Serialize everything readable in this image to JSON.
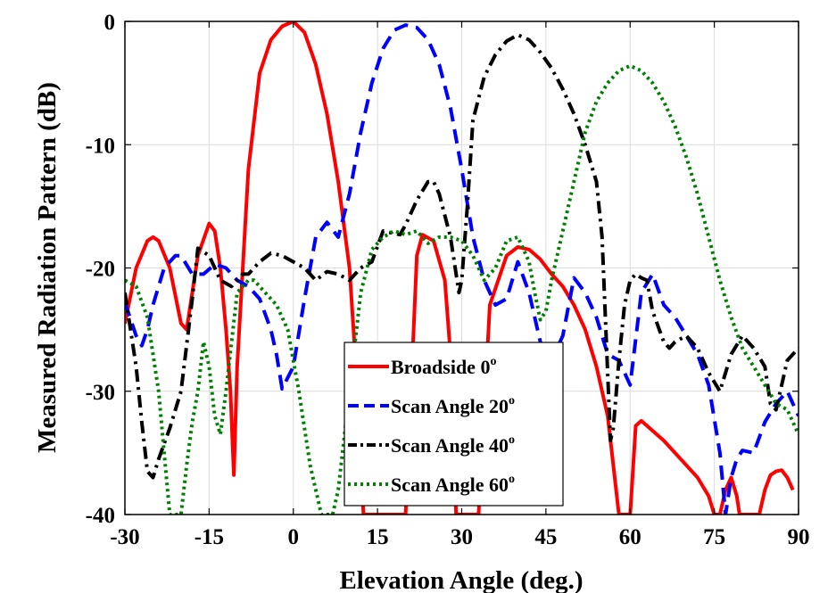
{
  "chart_data": {
    "type": "line",
    "xlabel": "Elevation Angle (deg.)",
    "ylabel": "Measured Radiation Pattern (dB)",
    "xlim": [
      -30,
      90
    ],
    "ylim": [
      -40,
      0
    ],
    "xticks": [
      -30,
      -15,
      0,
      15,
      30,
      45,
      60,
      75,
      90
    ],
    "yticks": [
      0,
      -10,
      -20,
      -30,
      -40
    ],
    "grid": true,
    "legend_position": "lower-center",
    "series": [
      {
        "name": "Broadside 0",
        "name_sup": "o",
        "color": "#ff0000",
        "dash": "solid",
        "x": [
          -30,
          -28,
          -26,
          -25,
          -24,
          -22,
          -20,
          -19,
          -17,
          -15,
          -14,
          -13,
          -12,
          -11.2,
          -10.6,
          -10,
          -8,
          -6,
          -4,
          -2,
          0,
          2,
          4,
          6,
          8,
          10,
          11,
          12,
          12.5,
          20,
          22,
          23,
          25,
          27,
          28,
          29,
          33,
          35,
          38,
          40,
          42,
          44,
          46,
          48,
          50,
          52,
          54,
          56,
          57,
          58,
          59,
          60,
          61,
          62,
          64,
          66,
          68,
          70,
          72,
          74,
          75,
          76,
          77,
          78,
          79,
          79.5,
          80,
          82,
          83,
          84,
          85,
          86,
          87,
          88,
          89
        ],
        "y": [
          -24.5,
          -20,
          -17.8,
          -17.5,
          -17.8,
          -20,
          -24.5,
          -25,
          -19,
          -16.4,
          -17,
          -20,
          -25,
          -30,
          -36.8,
          -28,
          -12,
          -4.2,
          -1.5,
          -0.4,
          0,
          -0.9,
          -3.5,
          -7.5,
          -13,
          -20,
          -27,
          -36,
          -40,
          -40,
          -19,
          -17.3,
          -17.8,
          -21,
          -27,
          -40,
          -40,
          -23,
          -19,
          -18.3,
          -18.5,
          -19.3,
          -20.5,
          -21.5,
          -23,
          -25,
          -28,
          -32,
          -36,
          -40,
          -40,
          -40,
          -32.8,
          -32.4,
          -33.2,
          -34,
          -35,
          -36,
          -37,
          -38.5,
          -40,
          -40,
          -38,
          -37,
          -38.5,
          -40,
          -40,
          -40,
          -40,
          -38,
          -36.8,
          -36.5,
          -36.4,
          -37,
          -38
        ]
      },
      {
        "name": "Scan Angle 20",
        "name_sup": "o",
        "color": "#0000ff",
        "dash": "dash",
        "x": [
          -30,
          -28,
          -27,
          -26,
          -25,
          -23,
          -21,
          -20,
          -18,
          -16,
          -14,
          -12,
          -10,
          -8,
          -6,
          -4,
          -3,
          -2,
          0,
          2,
          4,
          6,
          8,
          10,
          12,
          14,
          16,
          18,
          20,
          22,
          24,
          26,
          28,
          30,
          32,
          34,
          36,
          38,
          40,
          42,
          44,
          46,
          48,
          50,
          52,
          54,
          56,
          58,
          60,
          62,
          64,
          66,
          68,
          70,
          72,
          74,
          76,
          77,
          78,
          79,
          80,
          82,
          84,
          86,
          88,
          90
        ],
        "y": [
          -22.8,
          -25.5,
          -26.3,
          -25,
          -23,
          -20,
          -19,
          -19,
          -20.5,
          -20.5,
          -19.7,
          -20,
          -21,
          -21.5,
          -22.5,
          -25,
          -27,
          -29.8,
          -28,
          -22.5,
          -17.5,
          -16.3,
          -17.5,
          -14,
          -9,
          -5,
          -2.2,
          -0.7,
          -0.3,
          -0.5,
          -1.5,
          -3.5,
          -7,
          -12,
          -17.5,
          -21,
          -23,
          -22.5,
          -19.5,
          -22,
          -26,
          -27.5,
          -25.5,
          -20.8,
          -22,
          -24,
          -27,
          -27.5,
          -29.5,
          -22,
          -20.5,
          -23,
          -24,
          -25.5,
          -27,
          -29.5,
          -35,
          -40,
          -37,
          -35.5,
          -34.8,
          -35,
          -32.5,
          -31,
          -30,
          -32
        ]
      },
      {
        "name": "Scan Angle 40",
        "name_sup": "o",
        "color": "#000000",
        "dash": "dashdot",
        "x": [
          -30,
          -28,
          -27,
          -26,
          -25,
          -24,
          -22,
          -20,
          -18,
          -17,
          -15,
          -13,
          -11,
          -9,
          -8,
          -6,
          -4,
          -2,
          0,
          2,
          4,
          6,
          8,
          10,
          12,
          14,
          16,
          18,
          19,
          20,
          22,
          24,
          25,
          26,
          28,
          29.5,
          30,
          31,
          32,
          34,
          36,
          38,
          40,
          42,
          44,
          46,
          48,
          50,
          52,
          54,
          55,
          56.5,
          57,
          58,
          59,
          60,
          61,
          62,
          63,
          64,
          66,
          67,
          68,
          70,
          72,
          74,
          76,
          78,
          80,
          82,
          84,
          85,
          86,
          88,
          90
        ],
        "y": [
          -22,
          -28,
          -32.5,
          -36.5,
          -37,
          -35.5,
          -33,
          -30,
          -22.5,
          -18.4,
          -19,
          -21,
          -21.5,
          -20.5,
          -20.5,
          -19.5,
          -18.8,
          -19,
          -19.5,
          -20,
          -21,
          -20.3,
          -20.5,
          -21,
          -20,
          -19.5,
          -17,
          -17.2,
          -17.3,
          -16.5,
          -14.5,
          -13,
          -13,
          -14,
          -17.5,
          -22,
          -21,
          -15,
          -8,
          -4.5,
          -2.7,
          -1.6,
          -1.1,
          -1.5,
          -2.5,
          -3.8,
          -5.5,
          -7.5,
          -10,
          -13,
          -17.5,
          -34,
          -33,
          -27.5,
          -23,
          -21,
          -20.5,
          -20.8,
          -21,
          -23.5,
          -26,
          -26.5,
          -26,
          -25.5,
          -26.5,
          -28.5,
          -30,
          -27,
          -25.5,
          -26.5,
          -28,
          -31,
          -31.5,
          -27.5,
          -26.5
        ]
      },
      {
        "name": "Scan Angle 60",
        "name_sup": "o",
        "color": "#008000",
        "dash": "dot",
        "x": [
          -30,
          -28,
          -26,
          -24,
          -23,
          -22,
          -21,
          -20,
          -19,
          -18,
          -17,
          -16,
          -15,
          -14,
          -13,
          -12,
          -10,
          -8,
          -7,
          -6,
          -5,
          -3,
          -1,
          1,
          3,
          5,
          6,
          7,
          8,
          10,
          12,
          14,
          16,
          18,
          20,
          22,
          24,
          26,
          28,
          30,
          32,
          34,
          36,
          38,
          40,
          42,
          43,
          44,
          45,
          46,
          48,
          50,
          52,
          54,
          56,
          58,
          60,
          62,
          64,
          66,
          68,
          70,
          72,
          74,
          76,
          78,
          80,
          82,
          84,
          86,
          88,
          90
        ],
        "y": [
          -21,
          -21.5,
          -24,
          -30,
          -35,
          -40,
          -40,
          -40,
          -36,
          -32.5,
          -30,
          -26,
          -28,
          -32,
          -33.5,
          -30,
          -22,
          -21,
          -21,
          -21.5,
          -22,
          -23,
          -25,
          -30,
          -36,
          -40,
          -40,
          -40,
          -38,
          -30,
          -22,
          -18.5,
          -17.5,
          -17,
          -17.3,
          -17,
          -18,
          -17.5,
          -17.5,
          -17.8,
          -19,
          -21,
          -20,
          -17.8,
          -17.5,
          -19.5,
          -22,
          -24.2,
          -23.5,
          -21,
          -17,
          -13,
          -9,
          -6.5,
          -5,
          -4,
          -3.6,
          -4,
          -5,
          -6.5,
          -8.5,
          -11,
          -14,
          -17.5,
          -21,
          -24,
          -26.5,
          -28,
          -29.5,
          -31,
          -31.5,
          -33.5
        ]
      }
    ]
  }
}
